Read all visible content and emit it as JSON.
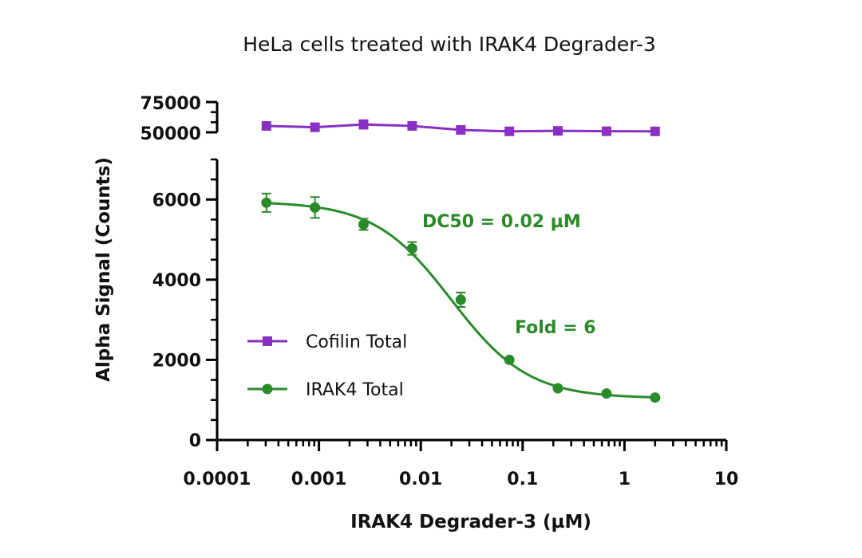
{
  "chart_data": {
    "type": "line",
    "title": "HeLa cells treated with IRAK4 Degrader-3",
    "xlabel": "IRAK4 Degrader-3 (µM)",
    "ylabel": "Alpha Signal (Counts)",
    "x_scale": "log",
    "xlim": [
      0.0001,
      10
    ],
    "x_ticks": [
      "0.0001",
      "0.001",
      "0.01",
      "0.1",
      "1",
      "10"
    ],
    "y_axis_broken": true,
    "ylim_lower": [
      0,
      7000
    ],
    "ylim_upper": [
      50000,
      75000
    ],
    "y_ticks_lower": [
      "0",
      "2000",
      "4000",
      "6000"
    ],
    "y_ticks_upper": [
      "50000",
      "75000"
    ],
    "legend_position": "lower-left",
    "x": [
      0.000305,
      0.000914,
      0.00274,
      0.00823,
      0.0247,
      0.0741,
      0.222,
      0.667,
      2
    ],
    "series": [
      {
        "name": "Cofilin Total",
        "color": "#8a2fc4",
        "marker": "square",
        "values": [
          55300,
          54200,
          56500,
          55300,
          52000,
          50800,
          51200,
          50900,
          50800
        ],
        "errors": [
          0,
          0,
          3500,
          0,
          0,
          0,
          0,
          0,
          0
        ]
      },
      {
        "name": "IRAK4 Total",
        "color": "#2a8a2a",
        "marker": "circle",
        "values": [
          5920,
          5800,
          5380,
          4780,
          3500,
          2000,
          1290,
          1160,
          1060
        ],
        "errors": [
          230,
          260,
          140,
          160,
          180,
          0,
          0,
          0,
          0
        ]
      }
    ],
    "annotations": [
      {
        "text": "DC50 = 0.02 µM",
        "color": "#2a8a2a"
      },
      {
        "text": "Fold = 6",
        "color": "#2a8a2a"
      }
    ]
  }
}
